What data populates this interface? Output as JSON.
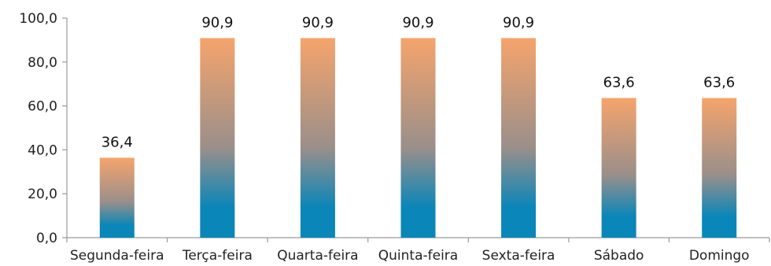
{
  "chart_data": {
    "type": "bar",
    "categories": [
      "Segunda-feira",
      "Terça-feira",
      "Quarta-feira",
      "Quinta-feira",
      "Sexta-feira",
      "Sábado",
      "Domingo"
    ],
    "values": [
      36.4,
      90.9,
      90.9,
      90.9,
      90.9,
      63.6,
      63.6
    ],
    "data_labels": [
      "36,4",
      "90,9",
      "90,9",
      "90,9",
      "90,9",
      "63,6",
      "63,6"
    ],
    "yticks": [
      0,
      20,
      40,
      60,
      80,
      100
    ],
    "ytick_labels": [
      "0,0",
      "20,0",
      "40,0",
      "60,0",
      "80,0",
      "100,0"
    ],
    "ylim": [
      0,
      100
    ],
    "title": "",
    "xlabel": "",
    "ylabel": "",
    "grid": false,
    "legend": "none",
    "colors": {
      "bar_top": "#f5a46c",
      "bar_middle": "#9a8f8a",
      "bar_bottom": "#0a86b8",
      "axis": "#9a9a9a",
      "text": "#222222"
    }
  }
}
